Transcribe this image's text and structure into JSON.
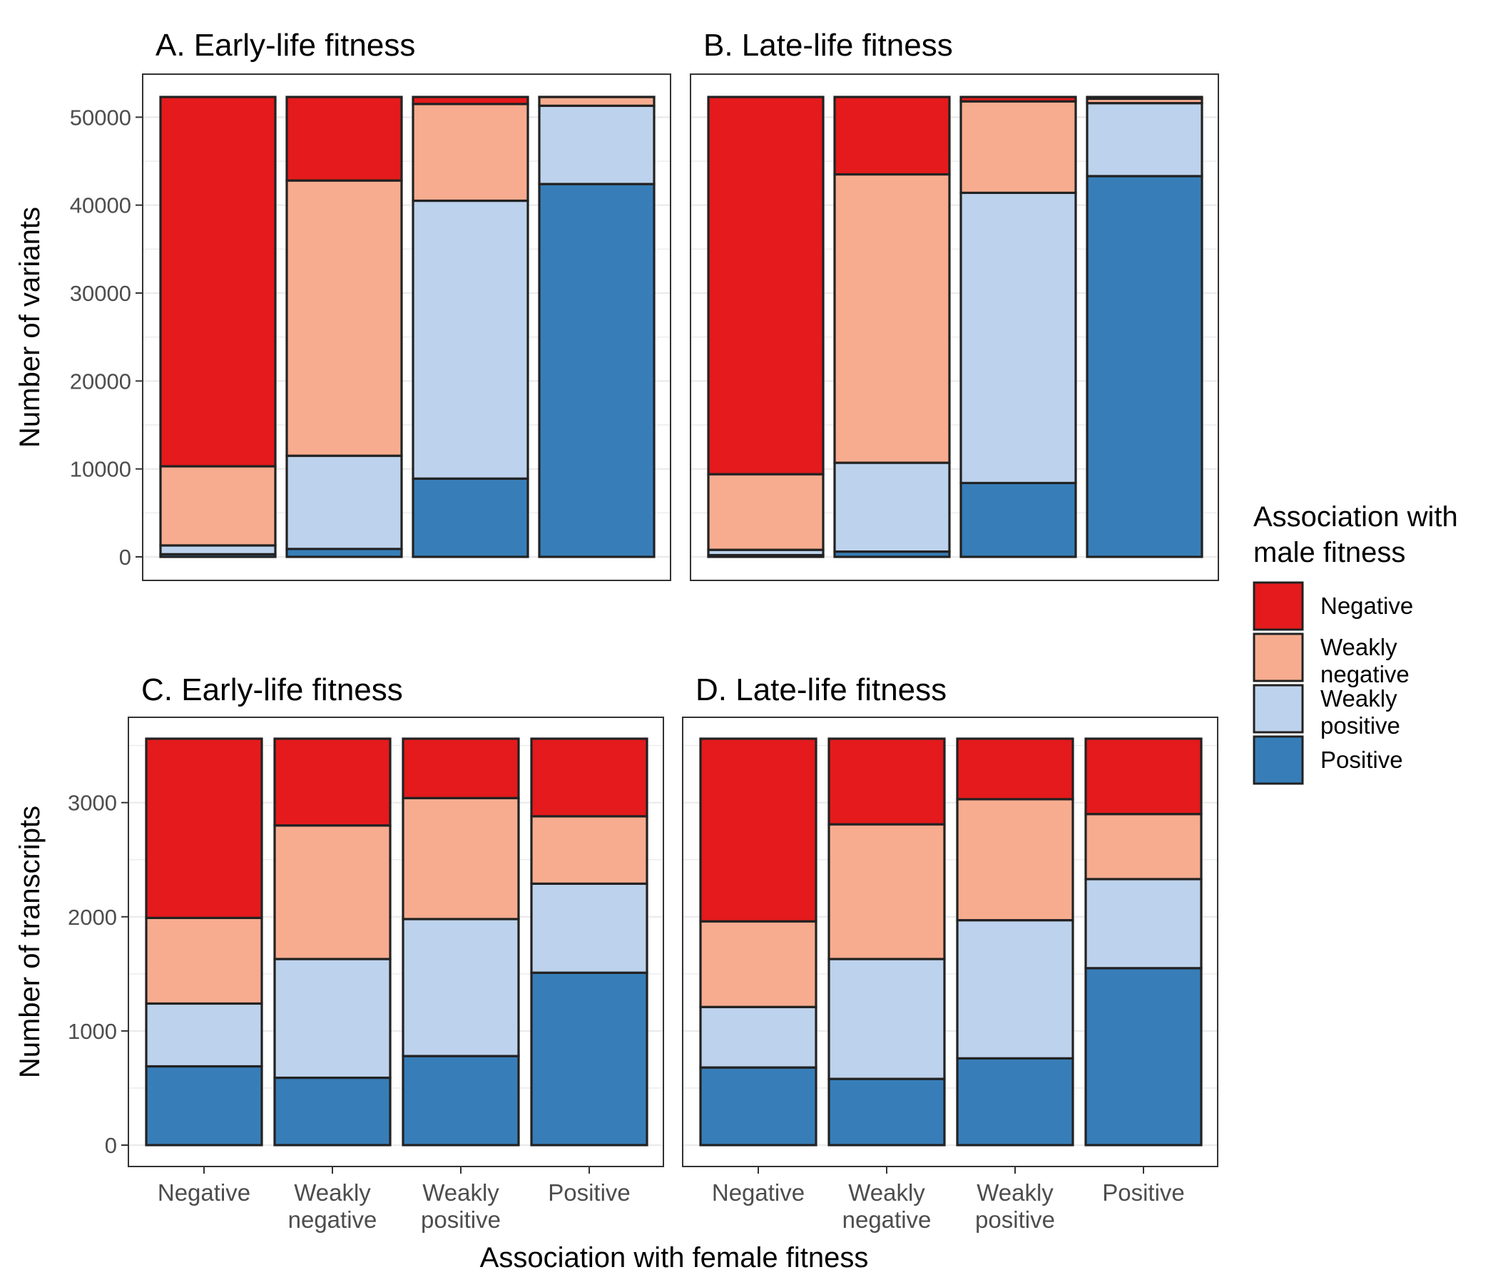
{
  "figure": {
    "colors": {
      "Negative": "#e41a1c",
      "Weakly negative": "#f7ac8f",
      "Weakly positive": "#bdd2ec",
      "Positive": "#377eb8",
      "outline": "#222222",
      "gridline": "#ebebeb",
      "axis_text": "#4d4d4d",
      "text": "#000000"
    },
    "x_title": "Association with female fitness",
    "legend": {
      "title_line1": "Association with",
      "title_line2": "male fitness",
      "items": [
        {
          "key": "Negative",
          "lines": [
            "Negative"
          ]
        },
        {
          "key": "Weakly negative",
          "lines": [
            "Weakly",
            "negative"
          ]
        },
        {
          "key": "Weakly positive",
          "lines": [
            "Weakly",
            "positive"
          ]
        },
        {
          "key": "Positive",
          "lines": [
            "Positive"
          ]
        }
      ]
    }
  },
  "chart_data": [
    {
      "type": "bar",
      "stacked": true,
      "title": "A. Early-life fitness",
      "ylabel": "Number of variants",
      "ylim": [
        0,
        52300
      ],
      "yticks": [
        0,
        10000,
        20000,
        30000,
        40000,
        50000
      ],
      "categories": [
        "Negative",
        "Weakly negative",
        "Weakly positive",
        "Positive"
      ],
      "series": [
        {
          "name": "Positive",
          "values": [
            300,
            900,
            8900,
            42400
          ]
        },
        {
          "name": "Weakly positive",
          "values": [
            1000,
            10600,
            31600,
            8900
          ]
        },
        {
          "name": "Weakly negative",
          "values": [
            9000,
            31300,
            11000,
            1000
          ]
        },
        {
          "name": "Negative",
          "values": [
            42000,
            9500,
            800,
            0
          ]
        }
      ]
    },
    {
      "type": "bar",
      "stacked": true,
      "title": "B. Late-life fitness",
      "ylabel": "",
      "ylim": [
        0,
        52300
      ],
      "yticks": [
        0,
        10000,
        20000,
        30000,
        40000,
        50000
      ],
      "categories": [
        "Negative",
        "Weakly negative",
        "Weakly positive",
        "Positive"
      ],
      "series": [
        {
          "name": "Positive",
          "values": [
            200,
            600,
            8400,
            43300
          ]
        },
        {
          "name": "Weakly positive",
          "values": [
            600,
            10100,
            33000,
            8300
          ]
        },
        {
          "name": "Weakly negative",
          "values": [
            8600,
            32800,
            10400,
            500
          ]
        },
        {
          "name": "Negative",
          "values": [
            42900,
            8800,
            500,
            200
          ]
        }
      ]
    },
    {
      "type": "bar",
      "stacked": true,
      "title": "C. Early-life fitness",
      "ylabel": "Number of transcripts",
      "ylim": [
        0,
        3560
      ],
      "yticks": [
        0,
        1000,
        2000,
        3000
      ],
      "categories": [
        "Negative",
        "Weakly negative",
        "Weakly positive",
        "Positive"
      ],
      "series": [
        {
          "name": "Positive",
          "values": [
            690,
            590,
            780,
            1510
          ]
        },
        {
          "name": "Weakly positive",
          "values": [
            550,
            1040,
            1200,
            780
          ]
        },
        {
          "name": "Weakly negative",
          "values": [
            750,
            1170,
            1060,
            590
          ]
        },
        {
          "name": "Negative",
          "values": [
            1570,
            760,
            520,
            680
          ]
        }
      ]
    },
    {
      "type": "bar",
      "stacked": true,
      "title": "D. Late-life fitness",
      "ylabel": "",
      "ylim": [
        0,
        3560
      ],
      "yticks": [
        0,
        1000,
        2000,
        3000
      ],
      "categories": [
        "Negative",
        "Weakly negative",
        "Weakly positive",
        "Positive"
      ],
      "series": [
        {
          "name": "Positive",
          "values": [
            680,
            580,
            760,
            1550
          ]
        },
        {
          "name": "Weakly positive",
          "values": [
            530,
            1050,
            1210,
            780
          ]
        },
        {
          "name": "Weakly negative",
          "values": [
            750,
            1180,
            1060,
            570
          ]
        },
        {
          "name": "Negative",
          "values": [
            1600,
            750,
            530,
            660
          ]
        }
      ]
    }
  ]
}
